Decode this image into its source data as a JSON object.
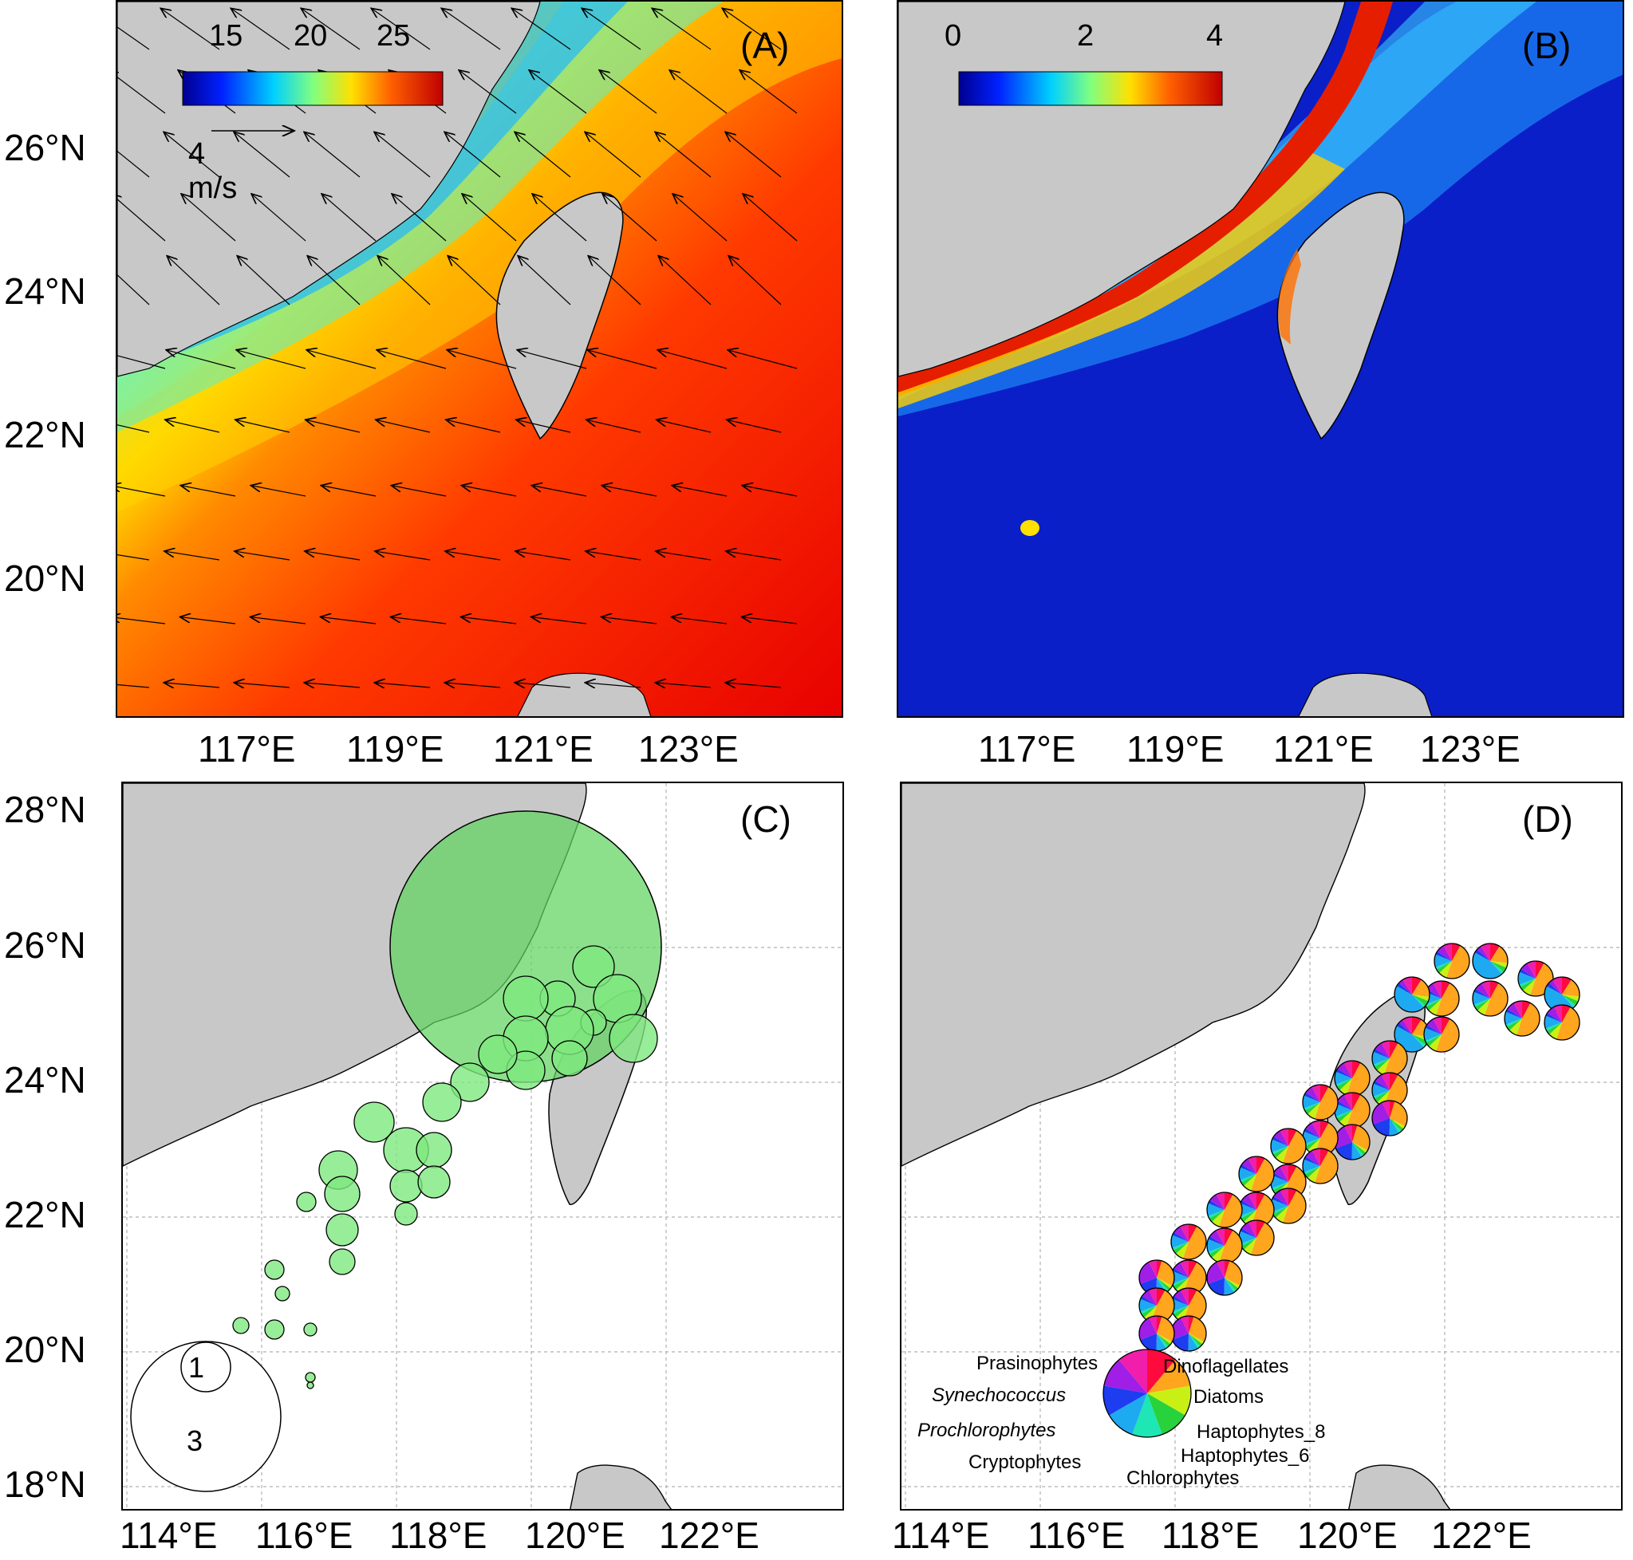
{
  "panels": {
    "A": {
      "label": "(A)",
      "colorbar_ticks": [
        "15",
        "20",
        "25"
      ],
      "vector_scale_label": "4 m/s",
      "lat_ticks": [
        "26°N",
        "24°N",
        "22°N",
        "20°N"
      ],
      "lon_ticks": [
        "117°E",
        "119°E",
        "121°E",
        "123°E"
      ]
    },
    "B": {
      "label": "(B)",
      "colorbar_ticks": [
        "0",
        "2",
        "4"
      ],
      "lon_ticks": [
        "117°E",
        "119°E",
        "121°E",
        "123°E"
      ]
    },
    "C": {
      "label": "(C)",
      "lat_ticks": [
        "28°N",
        "26°N",
        "24°N",
        "22°N",
        "20°N",
        "18°N"
      ],
      "lon_ticks": [
        "114°E",
        "116°E",
        "118°E",
        "120°E",
        "122°E"
      ],
      "size_legend": [
        "1",
        "3"
      ]
    },
    "D": {
      "label": "(D)",
      "lon_ticks": [
        "114°E",
        "116°E",
        "118°E",
        "120°E",
        "122°E"
      ],
      "pie_legend": {
        "groups": [
          {
            "name": "Dinoflagellates",
            "color": "#ff0a3c"
          },
          {
            "name": "Diatoms",
            "color": "#ffa51e"
          },
          {
            "name": "Haptophytes_8",
            "color": "#c8f014"
          },
          {
            "name": "Haptophytes_6",
            "color": "#28d23c"
          },
          {
            "name": "Chlorophytes",
            "color": "#1ee6b4"
          },
          {
            "name": "Cryptophytes",
            "color": "#1eaaf0"
          },
          {
            "name": "Prochlorophytes",
            "color": "#1e3cf0"
          },
          {
            "name": "Synechococcus",
            "color": "#a01ee6"
          },
          {
            "name": "Prasinophytes",
            "color": "#f01eaa"
          }
        ]
      }
    }
  },
  "colors": {
    "land": "#c8c8c8",
    "bubble_fill": "#7ee87e",
    "big_bubble_fill": "#5fd45f"
  }
}
